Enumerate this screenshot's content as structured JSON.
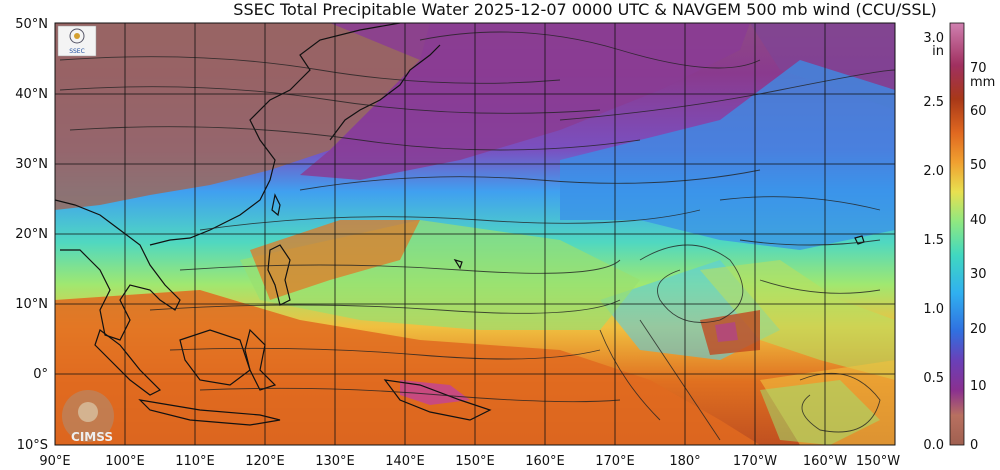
{
  "title": "SSEC Total Precipitable Water  2025-12-07 0000 UTC & NAVGEM 500 mb wind (CCU/SSL)",
  "lat_labels": [
    "50°N",
    "40°N",
    "30°N",
    "20°N",
    "10°N",
    "0°",
    "10°S"
  ],
  "lon_labels": [
    "90°E",
    "100°E",
    "110°E",
    "120°E",
    "130°E",
    "140°E",
    "150°E",
    "160°E",
    "170°E",
    "180°",
    "170°W",
    "160°W",
    "150°W"
  ],
  "colorbar": {
    "inch_labels": [
      "3.0",
      "2.5",
      "2.0",
      "1.5",
      "1.0",
      "0.5",
      "0.0"
    ],
    "inch_unit": "in",
    "mm_labels": [
      "70",
      "60",
      "50",
      "40",
      "30",
      "20",
      "10",
      "0"
    ],
    "mm_unit": "mm",
    "colors": [
      "#c27a9c",
      "#a8306b",
      "#8a2a8c",
      "#7a3fa8",
      "#5a4fc8",
      "#2f7fe8",
      "#3fb0f0",
      "#4fd8d0",
      "#7ae890",
      "#b8e86a",
      "#f0d040",
      "#f0a030",
      "#e07020",
      "#b84818",
      "#8a3020",
      "#a06050"
    ]
  },
  "logos": {
    "top_left_text": "SSEC",
    "bottom_left_text": "CIMSS"
  }
}
